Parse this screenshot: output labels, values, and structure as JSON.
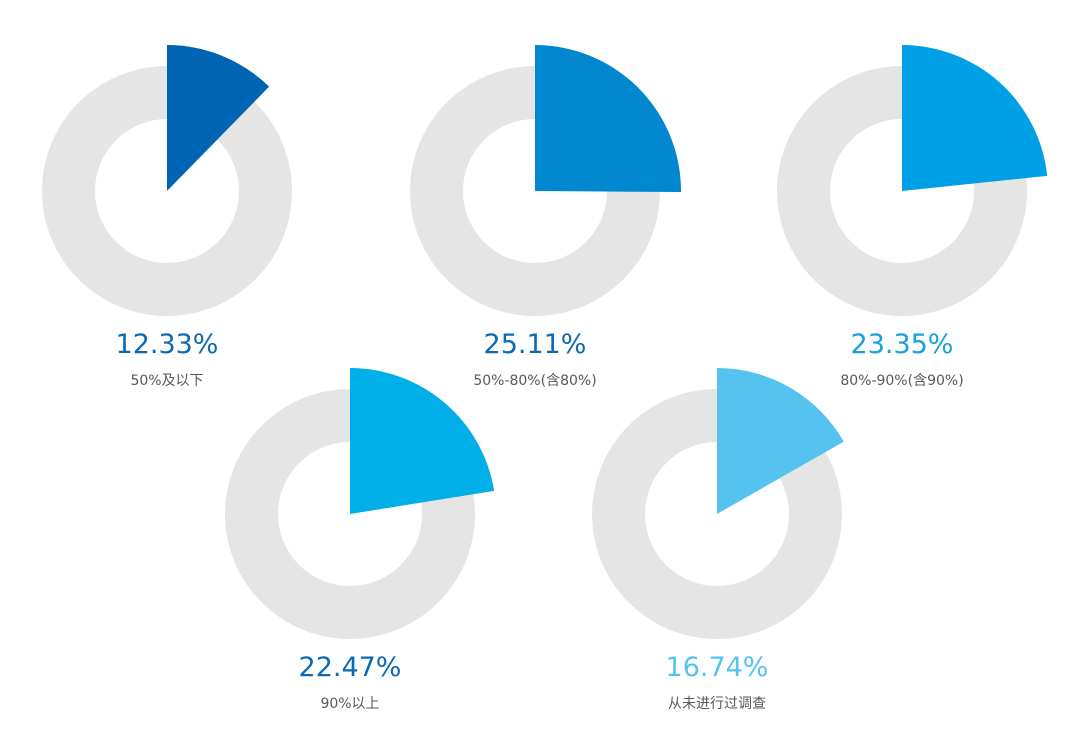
{
  "chart_data": {
    "type": "pie",
    "categories": [
      "50%及以下",
      "50%-80%(含80%)",
      "80%-90%(含90%)",
      "90%以上",
      "从未进行过调查"
    ],
    "values": [
      12.33,
      25.11,
      23.35,
      22.47,
      16.74
    ],
    "value_labels": [
      "12.33%",
      "25.11%",
      "23.35%",
      "22.47%",
      "16.74%"
    ],
    "unit": "%",
    "slice_colors": [
      "#0064b4",
      "#0087d0",
      "#00a0e6",
      "#00aee8",
      "#55c3f0"
    ],
    "value_label_colors": [
      "#0a6ab4",
      "#0a6ab4",
      "#1aa0e0",
      "#0a6ab4",
      "#55c3f0"
    ],
    "ring_color": "#e5e5e5",
    "label_color": "#595959"
  }
}
